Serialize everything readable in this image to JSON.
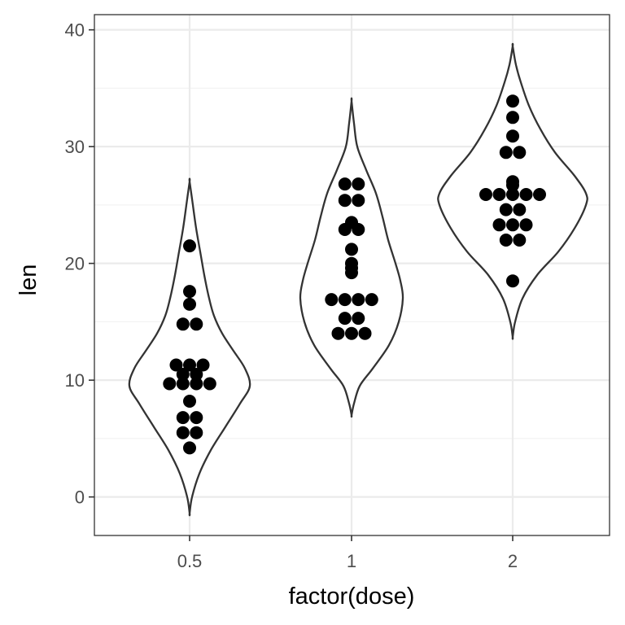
{
  "chart_data": {
    "type": "violin",
    "title": "",
    "xlabel": "factor(dose)",
    "ylabel": "len",
    "categories": [
      "0.5",
      "1",
      "2"
    ],
    "ylim": [
      -3.3,
      41.3
    ],
    "yticks": [
      0,
      10,
      20,
      30,
      40
    ],
    "grid": true,
    "violin_range": {
      "0.5": [
        -1.4,
        27.0
      ],
      "1": [
        7.0,
        33.9
      ],
      "2": [
        13.7,
        38.6
      ]
    },
    "points": {
      "0.5": [
        4.2,
        5.5,
        5.5,
        6.8,
        6.8,
        8.2,
        9.7,
        9.7,
        9.7,
        9.7,
        10.5,
        10.5,
        11.3,
        11.3,
        11.3,
        14.8,
        14.8,
        16.5,
        17.6,
        21.5
      ],
      "1": [
        14.0,
        14.0,
        14.0,
        15.3,
        15.3,
        16.9,
        16.9,
        16.9,
        16.9,
        19.2,
        19.6,
        20.0,
        21.2,
        22.9,
        22.9,
        23.5,
        25.4,
        25.4,
        26.8,
        26.8
      ],
      "2": [
        18.5,
        22.0,
        22.0,
        23.3,
        23.3,
        23.3,
        24.6,
        24.6,
        25.9,
        25.9,
        25.9,
        25.9,
        25.9,
        26.7,
        27.0,
        29.5,
        29.5,
        30.9,
        32.5,
        33.9
      ]
    },
    "point_color": "#000000",
    "outline_color": "#333333",
    "grid_color": "#ebebeb",
    "panel_border_color": "#333333"
  }
}
